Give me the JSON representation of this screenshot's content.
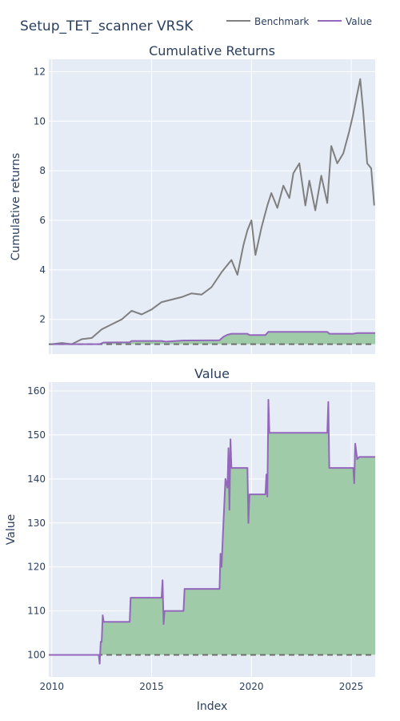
{
  "figure": {
    "title": "Setup_TET_scanner VRSK"
  },
  "legend": {
    "placement": "top-right",
    "items": [
      {
        "name": "Benchmark",
        "color": "#7f7f7f"
      },
      {
        "name": "Value",
        "color": "#9467bd"
      }
    ]
  },
  "colors": {
    "plot_bg": "#e5ecf6",
    "grid": "#ffffff",
    "benchmark": "#7f7f7f",
    "value": "#9467bd",
    "fill": "#9fcba8",
    "baseline": "#6e6e6e",
    "text": "#2a3f5f"
  },
  "chart_data": [
    {
      "type": "line",
      "title": "Cumulative Returns",
      "xlabel": "",
      "ylabel": "Cumulative returns",
      "xlim": [
        2009.85,
        2026.2
      ],
      "ylim": [
        0.6,
        12.5
      ],
      "yticks": [
        2,
        4,
        6,
        8,
        10,
        12
      ],
      "xticks": [
        2010,
        2015,
        2020,
        2025
      ],
      "show_xtick_labels": false,
      "grid": true,
      "baseline": 1.0,
      "fill_between": "Value-baseline",
      "series": [
        {
          "name": "Benchmark",
          "x": [
            2010.0,
            2010.5,
            2011.0,
            2011.5,
            2012.0,
            2012.5,
            2013.0,
            2013.5,
            2014.0,
            2014.5,
            2015.0,
            2015.5,
            2016.0,
            2016.5,
            2017.0,
            2017.5,
            2018.0,
            2018.5,
            2019.0,
            2019.3,
            2019.6,
            2019.8,
            2020.0,
            2020.2,
            2020.5,
            2020.8,
            2021.0,
            2021.3,
            2021.6,
            2021.9,
            2022.1,
            2022.4,
            2022.7,
            2022.9,
            2023.2,
            2023.5,
            2023.8,
            2024.0,
            2024.3,
            2024.6,
            2024.9,
            2025.1,
            2025.3,
            2025.45,
            2025.6,
            2025.8,
            2026.0,
            2026.15
          ],
          "values": [
            1.0,
            1.05,
            1.0,
            1.2,
            1.25,
            1.6,
            1.8,
            2.0,
            2.35,
            2.2,
            2.4,
            2.7,
            2.8,
            2.9,
            3.05,
            3.0,
            3.3,
            3.9,
            4.4,
            3.8,
            5.0,
            5.6,
            6.0,
            4.6,
            5.7,
            6.6,
            7.1,
            6.5,
            7.4,
            6.9,
            7.9,
            8.3,
            6.6,
            7.6,
            6.4,
            7.8,
            6.7,
            9.0,
            8.3,
            8.7,
            9.6,
            10.3,
            11.1,
            11.7,
            10.4,
            8.3,
            8.1,
            6.6
          ]
        },
        {
          "name": "Value",
          "x": [
            2010.0,
            2012.4,
            2012.6,
            2013.9,
            2014.0,
            2015.5,
            2015.7,
            2016.6,
            2016.7,
            2018.4,
            2018.6,
            2018.8,
            2019.0,
            2019.8,
            2019.9,
            2020.7,
            2020.85,
            2023.8,
            2023.9,
            2025.1,
            2025.3,
            2026.2
          ],
          "values": [
            1.0,
            1.0,
            1.07,
            1.08,
            1.13,
            1.13,
            1.1,
            1.15,
            1.15,
            1.16,
            1.3,
            1.38,
            1.42,
            1.42,
            1.37,
            1.37,
            1.5,
            1.5,
            1.42,
            1.42,
            1.45,
            1.45
          ]
        }
      ]
    },
    {
      "type": "line",
      "title": "Value",
      "xlabel": "Index",
      "ylabel": "Value",
      "xlim": [
        2009.85,
        2026.2
      ],
      "ylim": [
        95,
        162
      ],
      "yticks": [
        100,
        110,
        120,
        130,
        140,
        150,
        160
      ],
      "xticks": [
        2010,
        2015,
        2020,
        2025
      ],
      "show_xtick_labels": true,
      "grid": true,
      "baseline": 100,
      "fill_between": "Value-baseline",
      "series": [
        {
          "name": "Value",
          "x": [
            2009.85,
            2012.35,
            2012.4,
            2012.45,
            2012.5,
            2012.55,
            2012.6,
            2012.7,
            2013.9,
            2013.95,
            2014.0,
            2015.5,
            2015.55,
            2015.6,
            2015.65,
            2015.7,
            2016.6,
            2016.65,
            2018.4,
            2018.45,
            2018.5,
            2018.6,
            2018.7,
            2018.8,
            2018.85,
            2018.9,
            2018.95,
            2019.0,
            2019.8,
            2019.85,
            2019.9,
            2020.7,
            2020.75,
            2020.8,
            2020.85,
            2020.9,
            2023.8,
            2023.85,
            2023.9,
            2025.1,
            2025.15,
            2025.2,
            2025.3,
            2025.4,
            2026.2
          ],
          "values": [
            100,
            100,
            98,
            103,
            103,
            109,
            107.5,
            107.5,
            107.5,
            113,
            113,
            113,
            117,
            107,
            110,
            110,
            110,
            115,
            115,
            123,
            120,
            130,
            140,
            138,
            147,
            133,
            149,
            142.5,
            142.5,
            130,
            136.5,
            136.5,
            141,
            136,
            158,
            150.5,
            150.5,
            157.5,
            142.5,
            142.5,
            139,
            148,
            144.5,
            145,
            145
          ]
        }
      ]
    }
  ]
}
